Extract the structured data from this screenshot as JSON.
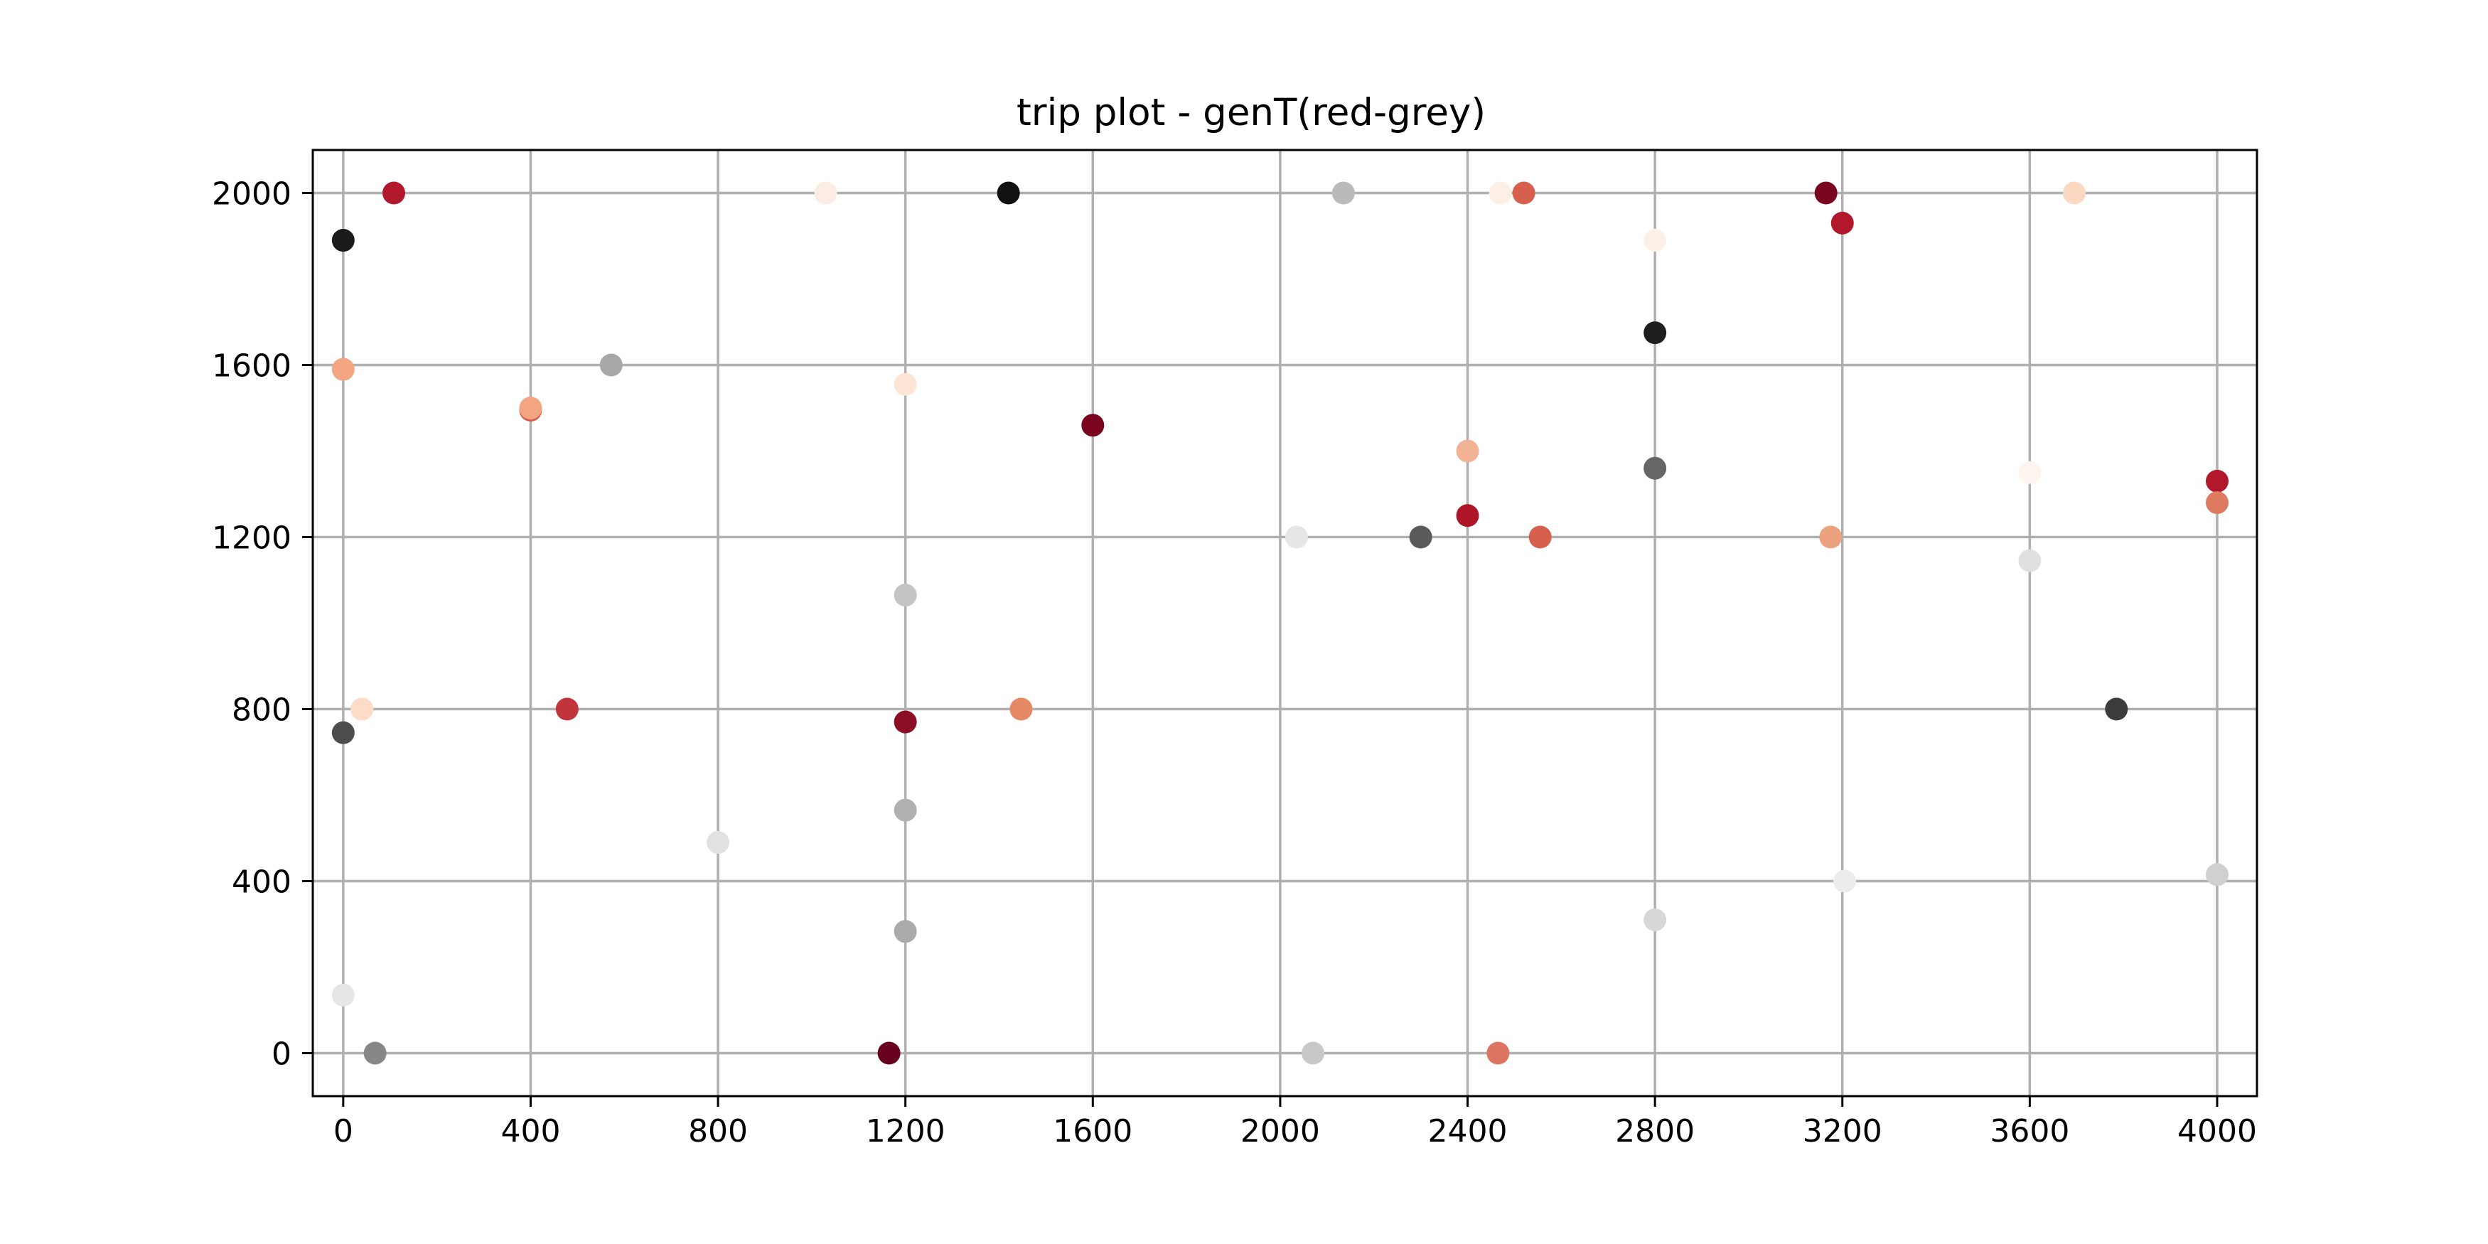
{
  "chart_data": {
    "type": "scatter",
    "title": "trip plot - genT(red-grey)",
    "xlabel": "",
    "ylabel": "",
    "xlim": [
      -65,
      4085
    ],
    "ylim": [
      -100,
      2100
    ],
    "xticks": [
      0,
      400,
      800,
      1200,
      1600,
      2000,
      2400,
      2800,
      3200,
      3600,
      4000
    ],
    "yticks": [
      0,
      400,
      800,
      1200,
      1600,
      2000
    ],
    "grid": true,
    "legend": "none",
    "colormap": "RdGy",
    "points": [
      {
        "x": 108,
        "y": 2000,
        "color": "#b2182b"
      },
      {
        "x": 0,
        "y": 1890,
        "color": "#1a1a1a"
      },
      {
        "x": 0,
        "y": 1590,
        "color": "#f4a582"
      },
      {
        "x": 0,
        "y": 745,
        "color": "#4d4d4d"
      },
      {
        "x": 40,
        "y": 800,
        "color": "#fddbc7"
      },
      {
        "x": 0,
        "y": 135,
        "color": "#e6e6e6"
      },
      {
        "x": 68,
        "y": 0,
        "color": "#878787"
      },
      {
        "x": 400,
        "y": 1495,
        "color": "#d6604d"
      },
      {
        "x": 400,
        "y": 1500,
        "color": "#f4a582"
      },
      {
        "x": 572,
        "y": 1600,
        "color": "#a8a8a8"
      },
      {
        "x": 478,
        "y": 800,
        "color": "#c1343b"
      },
      {
        "x": 800,
        "y": 490,
        "color": "#e2e2e2"
      },
      {
        "x": 1030,
        "y": 2000,
        "color": "#fdece4"
      },
      {
        "x": 1200,
        "y": 1555,
        "color": "#fde5d5"
      },
      {
        "x": 1200,
        "y": 1065,
        "color": "#c4c4c4"
      },
      {
        "x": 1200,
        "y": 770,
        "color": "#8b0e25"
      },
      {
        "x": 1200,
        "y": 565,
        "color": "#b0b0b0"
      },
      {
        "x": 1200,
        "y": 283,
        "color": "#ababab"
      },
      {
        "x": 1165,
        "y": 0,
        "color": "#67001f"
      },
      {
        "x": 1420,
        "y": 2000,
        "color": "#111111"
      },
      {
        "x": 1447,
        "y": 800,
        "color": "#e58866"
      },
      {
        "x": 1600,
        "y": 1460,
        "color": "#7a0420"
      },
      {
        "x": 2135,
        "y": 2000,
        "color": "#bababa"
      },
      {
        "x": 2035,
        "y": 1200,
        "color": "#e6e6e6"
      },
      {
        "x": 2070,
        "y": 0,
        "color": "#c8c8c8"
      },
      {
        "x": 2300,
        "y": 1200,
        "color": "#5a5a5a"
      },
      {
        "x": 2400,
        "y": 1400,
        "color": "#f2b294"
      },
      {
        "x": 2400,
        "y": 1250,
        "color": "#ae1529"
      },
      {
        "x": 2470,
        "y": 2000,
        "color": "#fdeee6"
      },
      {
        "x": 2520,
        "y": 2000,
        "color": "#d6604d"
      },
      {
        "x": 2555,
        "y": 1200,
        "color": "#d6604d"
      },
      {
        "x": 2465,
        "y": 0,
        "color": "#dc7561"
      },
      {
        "x": 2800,
        "y": 1890,
        "color": "#fdf0e8"
      },
      {
        "x": 2800,
        "y": 1675,
        "color": "#1f1f1f"
      },
      {
        "x": 2800,
        "y": 1360,
        "color": "#666666"
      },
      {
        "x": 2800,
        "y": 310,
        "color": "#d7d7d7"
      },
      {
        "x": 3165,
        "y": 2000,
        "color": "#7a0420"
      },
      {
        "x": 3200,
        "y": 1930,
        "color": "#b2182b"
      },
      {
        "x": 3175,
        "y": 1200,
        "color": "#eda27f"
      },
      {
        "x": 3205,
        "y": 400,
        "color": "#ececec"
      },
      {
        "x": 3600,
        "y": 1350,
        "color": "#fdf4ef"
      },
      {
        "x": 3600,
        "y": 1145,
        "color": "#e0e0e0"
      },
      {
        "x": 3695,
        "y": 2000,
        "color": "#fbd8c2"
      },
      {
        "x": 3785,
        "y": 800,
        "color": "#3c3c3c"
      },
      {
        "x": 4000,
        "y": 1330,
        "color": "#b2182b"
      },
      {
        "x": 4000,
        "y": 1280,
        "color": "#de7a60"
      },
      {
        "x": 4000,
        "y": 415,
        "color": "#d0d0d0"
      }
    ]
  }
}
